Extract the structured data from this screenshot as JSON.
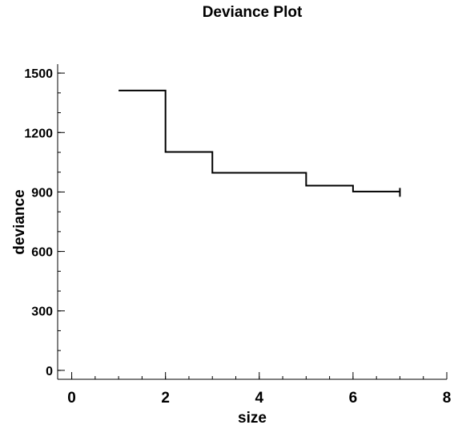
{
  "chart_data": {
    "type": "line",
    "step": "post",
    "title": "Deviance Plot",
    "xlabel": "size",
    "ylabel": "deviance",
    "xlim": [
      -0.3,
      8.0
    ],
    "ylim": [
      -45,
      1545
    ],
    "xticks": [
      0,
      2,
      4,
      6,
      8
    ],
    "yticks": [
      0,
      300,
      600,
      900,
      1200,
      1500
    ],
    "x_minor_step": 0.5,
    "y_minor_step": 100,
    "grid": false,
    "line_color": "#000000",
    "series": [
      {
        "x": [
          1,
          2,
          3,
          5,
          6,
          7
        ],
        "y": [
          1412,
          1102,
          997,
          932,
          902,
          888
        ]
      }
    ]
  }
}
